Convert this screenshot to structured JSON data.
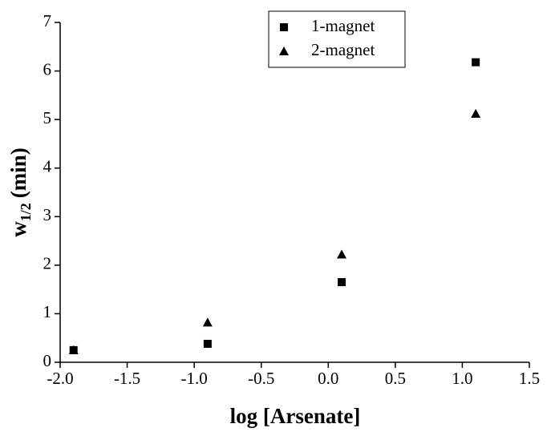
{
  "chart_data": {
    "type": "scatter",
    "xlabel": "log [Arsenate]",
    "ylabel": {
      "main": "w",
      "sub": "1/2",
      "unit": "(min)"
    },
    "xlim": [
      -2,
      1.5
    ],
    "xticks": [
      {
        "value": -2,
        "label": "-2.0"
      },
      -1.5,
      {
        "value": -1,
        "label": "-1.0"
      },
      -0.5,
      {
        "value": 0,
        "label": "0.0"
      },
      0.5,
      {
        "value": 1,
        "label": "1.0"
      },
      1.5
    ],
    "ylim": [
      0,
      7
    ],
    "yticks": [
      0,
      1,
      2,
      3,
      4,
      5,
      6,
      7
    ],
    "grid": false,
    "legend": "top",
    "series": [
      {
        "name": "1-magnet",
        "color": "#000000",
        "marker": "square",
        "x": [
          -1.9,
          -0.9,
          0.1,
          1.1
        ],
        "values": [
          0.25,
          0.38,
          1.65,
          6.18
        ]
      },
      {
        "name": "2-magnet",
        "color": "#000000",
        "marker": "triangle",
        "x": [
          -1.9,
          -0.9,
          0.1,
          1.1
        ],
        "values": [
          0.25,
          0.82,
          2.22,
          5.12
        ]
      }
    ]
  }
}
